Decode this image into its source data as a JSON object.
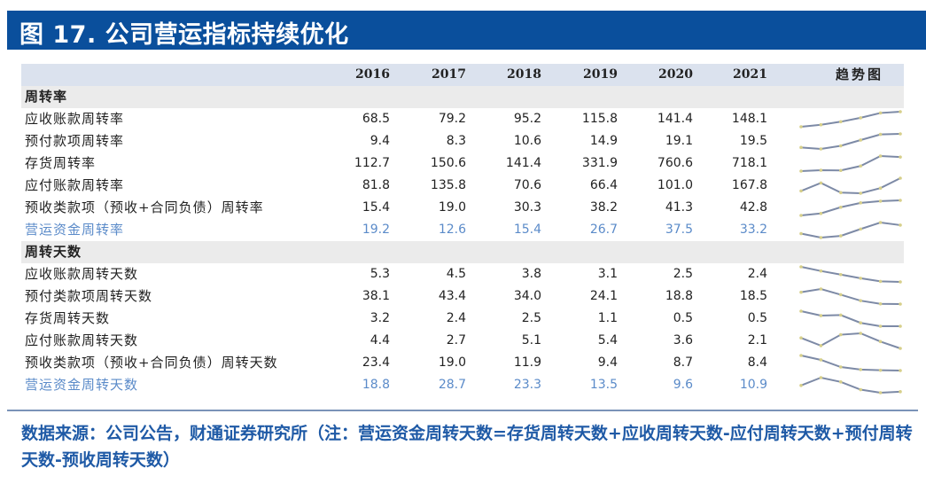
{
  "title": "图 17. 公司营运指标持续优化",
  "table": {
    "years": [
      "2016",
      "2017",
      "2018",
      "2019",
      "2020",
      "2021"
    ],
    "trend_header": "趋势图",
    "sections": [
      {
        "name": "周转率",
        "rows": [
          {
            "label": "应收账款周转率",
            "values": [
              "68.5",
              "79.2",
              "95.2",
              "115.8",
              "141.4",
              "148.1"
            ],
            "accent": false
          },
          {
            "label": "预付款项周转率",
            "values": [
              "9.4",
              "8.3",
              "10.6",
              "14.9",
              "19.1",
              "19.5"
            ],
            "accent": false
          },
          {
            "label": "存货周转率",
            "values": [
              "112.7",
              "150.6",
              "141.4",
              "331.9",
              "760.6",
              "718.1"
            ],
            "accent": false
          },
          {
            "label": "应付账款周转率",
            "values": [
              "81.8",
              "135.8",
              "70.6",
              "66.4",
              "101.0",
              "167.8"
            ],
            "accent": false
          },
          {
            "label": "预收类款项（预收+合同负债）周转率",
            "values": [
              "15.4",
              "19.0",
              "30.3",
              "38.2",
              "41.3",
              "42.8"
            ],
            "accent": false
          },
          {
            "label": "营运资金周转率",
            "values": [
              "19.2",
              "12.6",
              "15.4",
              "26.7",
              "37.5",
              "33.2"
            ],
            "accent": true
          }
        ]
      },
      {
        "name": "周转天数",
        "rows": [
          {
            "label": "应收账款周转天数",
            "values": [
              "5.3",
              "4.5",
              "3.8",
              "3.1",
              "2.5",
              "2.4"
            ],
            "accent": false
          },
          {
            "label": "预付类款项周转天数",
            "values": [
              "38.1",
              "43.4",
              "34.0",
              "24.1",
              "18.8",
              "18.5"
            ],
            "accent": false
          },
          {
            "label": "存货周转天数",
            "values": [
              "3.2",
              "2.4",
              "2.5",
              "1.1",
              "0.5",
              "0.5"
            ],
            "accent": false
          },
          {
            "label": "应付账款周转天数",
            "values": [
              "4.4",
              "2.7",
              "5.1",
              "5.4",
              "3.6",
              "2.1"
            ],
            "accent": false
          },
          {
            "label": "预收类款项（预收+合同负债）周转天数",
            "values": [
              "23.4",
              "19.0",
              "11.9",
              "9.4",
              "8.7",
              "8.4"
            ],
            "accent": false
          },
          {
            "label": "营运资金周转天数",
            "values": [
              "18.8",
              "28.7",
              "23.3",
              "13.5",
              "9.6",
              "10.9"
            ],
            "accent": true
          }
        ]
      }
    ]
  },
  "colors": {
    "title_bg": "#0a4f9c",
    "header_bg": "#dbe2ee",
    "section_bg": "#ebebeb",
    "accent_text": "#5b8bc9",
    "spark_line": "#7d8aa6",
    "spark_marker": "#d6cf8a",
    "note_text": "#1f5aa6"
  },
  "footnote": "数据来源：公司公告，财通证券研究所（注：营运资金周转天数=存货周转天数+应收周转天数-应付周转天数+预付周转天数-预收周转天数）"
}
